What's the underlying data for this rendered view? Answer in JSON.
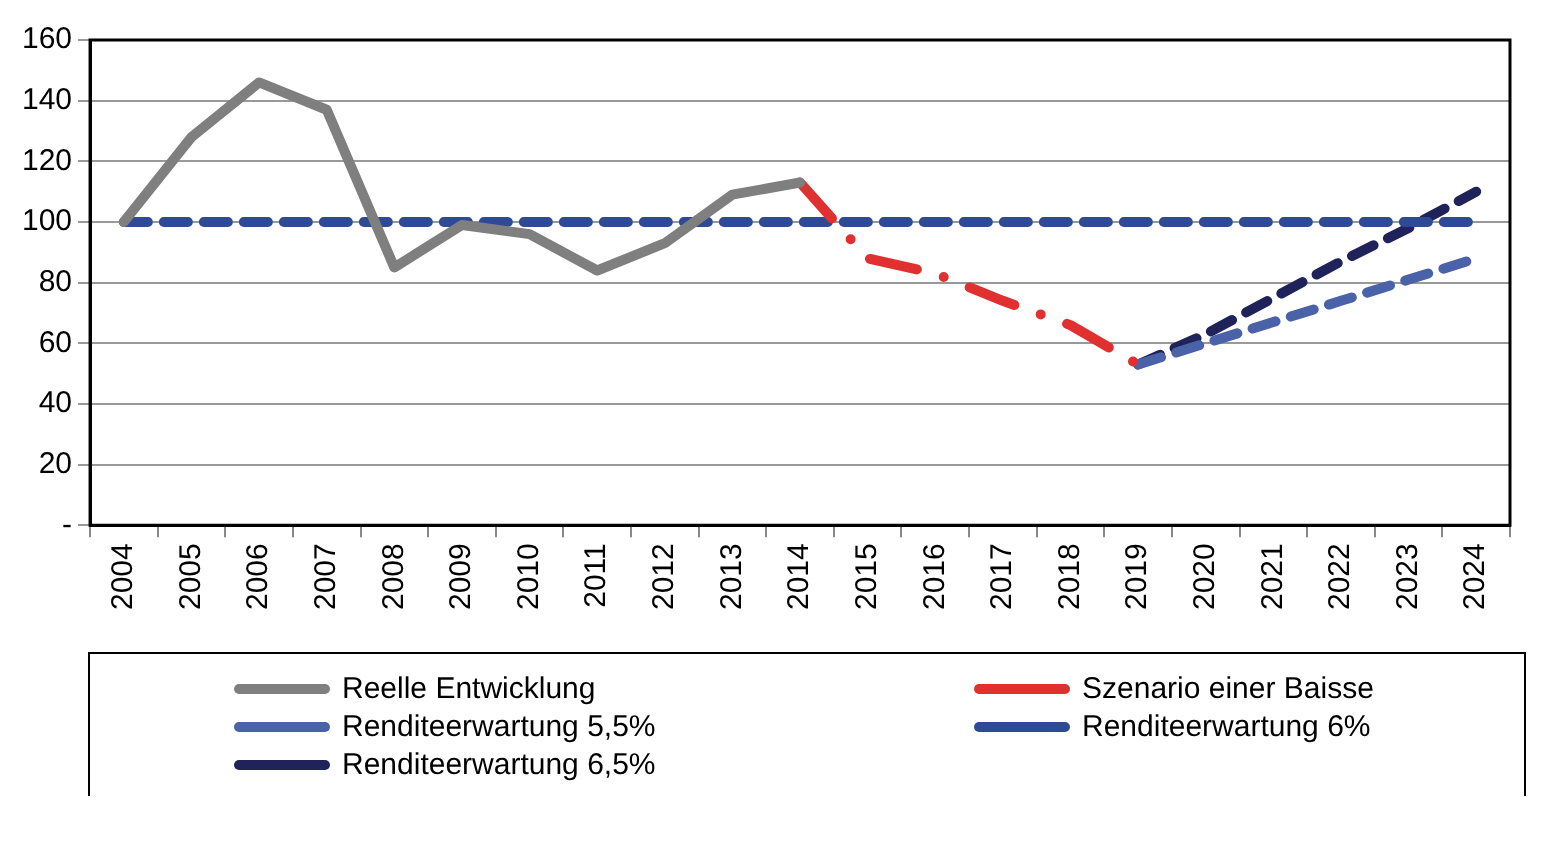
{
  "chart_data": {
    "type": "line",
    "categories": [
      "2004",
      "2005",
      "2006",
      "2007",
      "2008",
      "2009",
      "2010",
      "2011",
      "2012",
      "2013",
      "2014",
      "2015",
      "2016",
      "2017",
      "2018",
      "2019",
      "2020",
      "2021",
      "2022",
      "2023",
      "2024"
    ],
    "series": [
      {
        "name": "Reelle Entwicklung",
        "color": "#7f7f7f",
        "line_style": "solid",
        "values": [
          100,
          128,
          146,
          137,
          85,
          99,
          96,
          84,
          93,
          109,
          113,
          null,
          null,
          null,
          null,
          null,
          null,
          null,
          null,
          null,
          null
        ]
      },
      {
        "name": "Szenario einer Baisse",
        "color": "#e03030",
        "line_style": "dotted",
        "values": [
          null,
          null,
          null,
          null,
          null,
          null,
          null,
          null,
          null,
          null,
          113,
          88,
          83,
          74,
          66,
          53,
          null,
          null,
          null,
          null,
          null
        ]
      },
      {
        "name": "Renditeerwartung 5,5%",
        "color": "#4a63a8",
        "line_style": "dashed",
        "values": [
          null,
          null,
          null,
          null,
          null,
          null,
          null,
          null,
          null,
          null,
          null,
          null,
          null,
          null,
          null,
          53,
          60,
          67,
          74,
          81,
          88
        ]
      },
      {
        "name": "Renditeerwartung 6%",
        "color": "#2e4a94",
        "line_style": "dashed",
        "values": [
          100,
          100,
          100,
          100,
          100,
          100,
          100,
          100,
          100,
          100,
          100,
          100,
          100,
          100,
          100,
          100,
          100,
          100,
          100,
          100,
          100
        ]
      },
      {
        "name": "Renditeerwartung 6,5%",
        "color": "#20225a",
        "line_style": "dashed",
        "values": [
          null,
          null,
          null,
          null,
          null,
          null,
          null,
          null,
          null,
          null,
          null,
          null,
          null,
          null,
          null,
          53,
          63,
          75,
          87,
          98,
          110
        ]
      }
    ],
    "ylim": [
      0,
      160
    ],
    "yticks": [
      {
        "value": 0,
        "label": "-"
      },
      20,
      40,
      60,
      80,
      100,
      120,
      140,
      160
    ],
    "grid": "y",
    "legend": "bottom",
    "marker": "none"
  }
}
